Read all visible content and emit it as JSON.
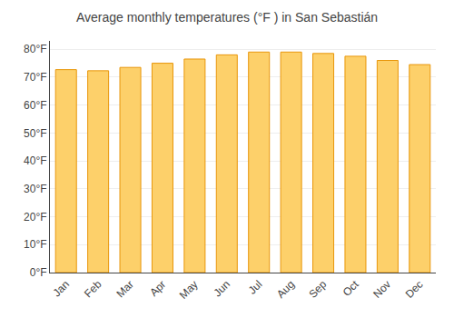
{
  "chart_data": {
    "type": "bar",
    "title": "Average monthly temperatures (°F ) in San Sebastián",
    "categories": [
      "Jan",
      "Feb",
      "Mar",
      "Apr",
      "May",
      "Jun",
      "Jul",
      "Aug",
      "Sep",
      "Oct",
      "Nov",
      "Dec"
    ],
    "values": [
      72.7,
      72.3,
      73.5,
      75.0,
      76.5,
      78.0,
      79.0,
      79.0,
      78.5,
      77.5,
      76.0,
      74.5
    ],
    "color": "#FDD06A",
    "ylim": [
      0,
      83
    ],
    "yticks": [
      {
        "value": 0,
        "label": "0°F"
      },
      {
        "value": 10,
        "label": "10°F"
      },
      {
        "value": 20,
        "label": "20°F"
      },
      {
        "value": 30,
        "label": "30°F"
      },
      {
        "value": 40,
        "label": "40°F"
      },
      {
        "value": 50,
        "label": "50°F"
      },
      {
        "value": 60,
        "label": "60°F"
      },
      {
        "value": 70,
        "label": "70°F"
      },
      {
        "value": 80,
        "label": "80°F"
      }
    ],
    "grid": true
  }
}
